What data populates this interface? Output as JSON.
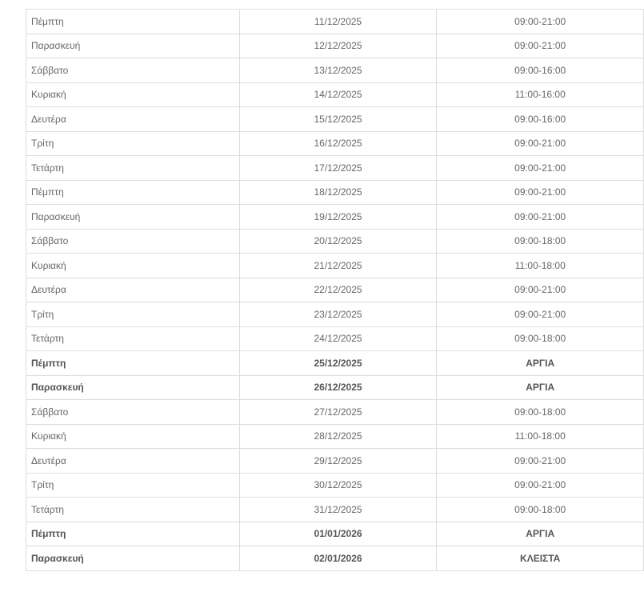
{
  "schedule": [
    {
      "day": "Πέμπτη",
      "date": "11/12/2025",
      "hours": "09:00-21:00",
      "bold": false
    },
    {
      "day": "Παρασκευή",
      "date": "12/12/2025",
      "hours": "09:00-21:00",
      "bold": false
    },
    {
      "day": "Σάββατο",
      "date": "13/12/2025",
      "hours": "09:00-16:00",
      "bold": false
    },
    {
      "day": "Κυριακή",
      "date": "14/12/2025",
      "hours": "11:00-16:00",
      "bold": false
    },
    {
      "day": "Δευτέρα",
      "date": "15/12/2025",
      "hours": "09:00-16:00",
      "bold": false
    },
    {
      "day": "Τρίτη",
      "date": "16/12/2025",
      "hours": "09:00-21:00",
      "bold": false
    },
    {
      "day": "Τετάρτη",
      "date": "17/12/2025",
      "hours": "09:00-21:00",
      "bold": false
    },
    {
      "day": "Πέμπτη",
      "date": "18/12/2025",
      "hours": "09:00-21:00",
      "bold": false
    },
    {
      "day": "Παρασκευή",
      "date": "19/12/2025",
      "hours": "09:00-21:00",
      "bold": false
    },
    {
      "day": "Σάββατο",
      "date": "20/12/2025",
      "hours": "09:00-18:00",
      "bold": false
    },
    {
      "day": "Κυριακή",
      "date": "21/12/2025",
      "hours": "11:00-18:00",
      "bold": false
    },
    {
      "day": "Δευτέρα",
      "date": "22/12/2025",
      "hours": "09:00-21:00",
      "bold": false
    },
    {
      "day": "Τρίτη",
      "date": "23/12/2025",
      "hours": "09:00-21:00",
      "bold": false
    },
    {
      "day": "Τετάρτη",
      "date": "24/12/2025",
      "hours": "09:00-18:00",
      "bold": false
    },
    {
      "day": "Πέμπτη",
      "date": "25/12/2025",
      "hours": "ΑΡΓΙΑ",
      "bold": true
    },
    {
      "day": "Παρασκευή",
      "date": "26/12/2025",
      "hours": "ΑΡΓΙΑ",
      "bold": true
    },
    {
      "day": "Σάββατο",
      "date": "27/12/2025",
      "hours": "09:00-18:00",
      "bold": false
    },
    {
      "day": "Κυριακή",
      "date": "28/12/2025",
      "hours": "11:00-18:00",
      "bold": false
    },
    {
      "day": "Δευτέρα",
      "date": "29/12/2025",
      "hours": "09:00-21:00",
      "bold": false
    },
    {
      "day": "Τρίτη",
      "date": "30/12/2025",
      "hours": "09:00-21:00",
      "bold": false
    },
    {
      "day": "Τετάρτη",
      "date": "31/12/2025",
      "hours": "09:00-18:00",
      "bold": false
    },
    {
      "day": "Πέμπτη",
      "date": "01/01/2026",
      "hours": "ΑΡΓΙΑ",
      "bold": true
    },
    {
      "day": "Παρασκευή",
      "date": "02/01/2026",
      "hours": "ΚΛΕΙΣΤΑ",
      "bold": true
    }
  ]
}
